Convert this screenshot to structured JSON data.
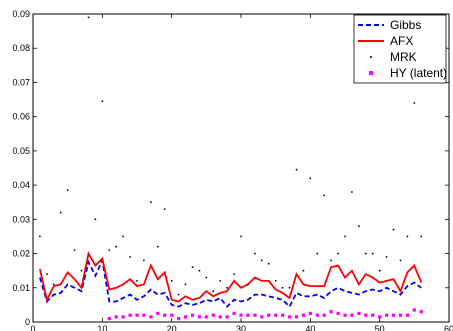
{
  "chart_data": {
    "type": "line",
    "title": "",
    "xlabel": "",
    "ylabel": "",
    "xlim": [
      0,
      60
    ],
    "ylim": [
      0,
      0.09
    ],
    "xticks": [
      0,
      10,
      20,
      30,
      40,
      50,
      60
    ],
    "yticks": [
      0,
      0.01,
      0.02,
      0.03,
      0.04,
      0.05,
      0.06,
      0.07,
      0.08,
      0.09
    ],
    "xtick_labels": [
      "0",
      "10",
      "20",
      "30",
      "40",
      "50",
      "60"
    ],
    "ytick_labels": [
      "0",
      "0.01",
      "0.02",
      "0.03",
      "0.04",
      "0.05",
      "0.06",
      "0.07",
      "0.08",
      "0.09"
    ],
    "grid": false,
    "legend_position": "top-right",
    "x": [
      1,
      2,
      3,
      4,
      5,
      6,
      7,
      8,
      9,
      10,
      11,
      12,
      13,
      14,
      15,
      16,
      17,
      18,
      19,
      20,
      21,
      22,
      23,
      24,
      25,
      26,
      27,
      28,
      29,
      30,
      31,
      32,
      33,
      34,
      35,
      36,
      37,
      38,
      39,
      40,
      41,
      42,
      43,
      44,
      45,
      46,
      47,
      48,
      49,
      50,
      51,
      52,
      53,
      54,
      55,
      56
    ],
    "series": [
      {
        "name": "Gibbs",
        "style": "dashed",
        "color": "#0000ff",
        "values": [
          0.013,
          0.006,
          0.008,
          0.0085,
          0.011,
          0.01,
          0.009,
          0.0175,
          0.0135,
          0.018,
          0.006,
          0.006,
          0.007,
          0.008,
          0.0065,
          0.0075,
          0.0095,
          0.008,
          0.0085,
          0.005,
          0.0045,
          0.0055,
          0.005,
          0.0055,
          0.0065,
          0.006,
          0.007,
          0.0045,
          0.0065,
          0.006,
          0.0065,
          0.008,
          0.008,
          0.0075,
          0.007,
          0.0065,
          0.0045,
          0.0085,
          0.0075,
          0.0075,
          0.008,
          0.007,
          0.009,
          0.01,
          0.009,
          0.0085,
          0.008,
          0.009,
          0.0095,
          0.009,
          0.01,
          0.009,
          0.008,
          0.0105,
          0.0115,
          0.01
        ]
      },
      {
        "name": "AFX",
        "style": "solid",
        "color": "#ff0000",
        "values": [
          0.0155,
          0.0065,
          0.0105,
          0.011,
          0.0145,
          0.0125,
          0.01,
          0.02,
          0.0165,
          0.0185,
          0.0095,
          0.01,
          0.011,
          0.0125,
          0.0105,
          0.011,
          0.0165,
          0.0125,
          0.0145,
          0.0065,
          0.006,
          0.0075,
          0.0065,
          0.007,
          0.009,
          0.0075,
          0.0085,
          0.009,
          0.012,
          0.01,
          0.011,
          0.013,
          0.012,
          0.012,
          0.0095,
          0.0085,
          0.007,
          0.014,
          0.011,
          0.0105,
          0.0105,
          0.0105,
          0.016,
          0.0165,
          0.013,
          0.015,
          0.011,
          0.014,
          0.013,
          0.0115,
          0.012,
          0.0125,
          0.009,
          0.0145,
          0.0165,
          0.0115
        ]
      },
      {
        "name": "MRK",
        "style": "dots",
        "color": "#000000",
        "values": [
          0.025,
          0.014,
          0.011,
          0.032,
          0.0385,
          0.021,
          0.015,
          0.089,
          0.03,
          0.0645,
          0.021,
          0.022,
          0.025,
          0.019,
          0.012,
          0.018,
          0.035,
          0.022,
          0.033,
          0.012,
          0.008,
          0.011,
          0.016,
          0.015,
          0.013,
          0.009,
          0.012,
          0.01,
          0.014,
          0.025,
          0.011,
          0.02,
          0.018,
          0.017,
          0.012,
          0.01,
          0.01,
          0.0445,
          0.015,
          0.042,
          0.02,
          0.037,
          0.018,
          0.02,
          0.025,
          0.038,
          0.028,
          0.02,
          0.02,
          0.015,
          0.019,
          0.027,
          0.018,
          0.025,
          0.064,
          0.025
        ]
      },
      {
        "name": "HY (latent)",
        "style": "markers",
        "color": "#ff00ff",
        "values": [
          null,
          null,
          null,
          null,
          null,
          null,
          null,
          null,
          null,
          null,
          0.001,
          0.0015,
          0.0015,
          0.002,
          0.002,
          0.002,
          0.0015,
          0.0025,
          0.002,
          0.002,
          0.001,
          0.0015,
          0.002,
          0.0015,
          0.0015,
          0.002,
          0.0015,
          0.0015,
          0.0025,
          0.002,
          0.002,
          0.002,
          0.0015,
          0.002,
          0.002,
          0.002,
          0.0015,
          0.0015,
          0.002,
          0.0025,
          0.002,
          0.002,
          0.003,
          0.0025,
          0.002,
          0.002,
          0.0025,
          0.002,
          0.002,
          0.0015,
          0.002,
          0.002,
          0.002,
          0.002,
          0.0035,
          0.003
        ]
      }
    ]
  }
}
